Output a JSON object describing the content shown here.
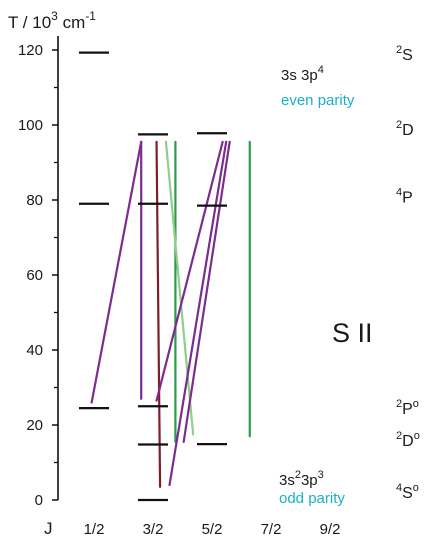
{
  "chart_data": {
    "type": "diagram",
    "y_axis": {
      "label_prefix": "T / 10",
      "label_exp": "3",
      "label_unit": " cm",
      "label_unit_exp": "-1",
      "range": [
        0,
        120
      ],
      "major_ticks": [
        0,
        20,
        40,
        60,
        80,
        100,
        120
      ],
      "minor_ticks": [
        10,
        30,
        50,
        70,
        90,
        110
      ]
    },
    "x_axis": {
      "label": "J",
      "categories": [
        "1/2",
        "3/2",
        "5/2",
        "7/2",
        "9/2"
      ]
    },
    "species": "S II",
    "configurations": [
      {
        "id": "even",
        "main": "3s 3p",
        "exp": "4",
        "parity": "even parity"
      },
      {
        "id": "odd",
        "main": "3s",
        "exp1": "2",
        "mid": "3p",
        "exp2": "3",
        "parity": "odd parity"
      }
    ],
    "terms": [
      {
        "symbol": "S",
        "mult": "2",
        "odd": false,
        "T": 119
      },
      {
        "symbol": "D",
        "mult": "2",
        "odd": false,
        "T": 99
      },
      {
        "symbol": "P",
        "mult": "4",
        "odd": false,
        "T": 81
      },
      {
        "symbol": "P",
        "mult": "2",
        "odd": true,
        "T": 24.5
      },
      {
        "symbol": "D",
        "mult": "2",
        "odd": true,
        "T": 16
      },
      {
        "symbol": "S",
        "mult": "4",
        "odd": true,
        "T": 0
      }
    ],
    "levels": [
      {
        "J": "1/2",
        "T": 119.3
      },
      {
        "J": "1/2",
        "T": 79
      },
      {
        "J": "1/2",
        "T": 24.5
      },
      {
        "J": "3/2",
        "T": 97.5
      },
      {
        "J": "3/2",
        "T": 79
      },
      {
        "J": "3/2",
        "T": 25
      },
      {
        "J": "3/2",
        "T": 14.8
      },
      {
        "J": "3/2",
        "T": 0
      },
      {
        "J": "5/2",
        "T": 97.8
      },
      {
        "J": "5/2",
        "T": 78.5
      },
      {
        "J": "5/2",
        "T": 14.9
      }
    ],
    "transitions": [
      {
        "x1": 0.96,
        "T1": 26,
        "x2": 1.8,
        "T2": 95.5,
        "color": "#7b2d8e"
      },
      {
        "x1": 1.8,
        "T1": 27,
        "x2": 1.8,
        "T2": 95.5,
        "color": "#7b2d8e"
      },
      {
        "x1": 2.12,
        "T1": 3.5,
        "x2": 2.06,
        "T2": 95.5,
        "color": "#7a1f2b"
      },
      {
        "x1": 2.38,
        "T1": 15.5,
        "x2": 2.38,
        "T2": 95.5,
        "color": "#2a9d4a"
      },
      {
        "x1": 2.68,
        "T1": 17.5,
        "x2": 2.22,
        "T2": 95.5,
        "color": "#8fcf8a"
      },
      {
        "x1": 2.06,
        "T1": 26.5,
        "x2": 3.18,
        "T2": 95.5,
        "color": "#7b2d8e"
      },
      {
        "x1": 2.28,
        "T1": 4.0,
        "x2": 3.24,
        "T2": 95.5,
        "color": "#7b2d8e"
      },
      {
        "x1": 2.52,
        "T1": 15.5,
        "x2": 3.3,
        "T2": 95.5,
        "color": "#7b2d8e"
      },
      {
        "x1": 3.64,
        "T1": 17.0,
        "x2": 3.64,
        "T2": 95.5,
        "color": "#2a9d4a"
      }
    ]
  },
  "colors": {
    "level": "#111111",
    "axis": "#111111",
    "parity_text": "#1ab0c9",
    "text": "#1a1a1a"
  }
}
